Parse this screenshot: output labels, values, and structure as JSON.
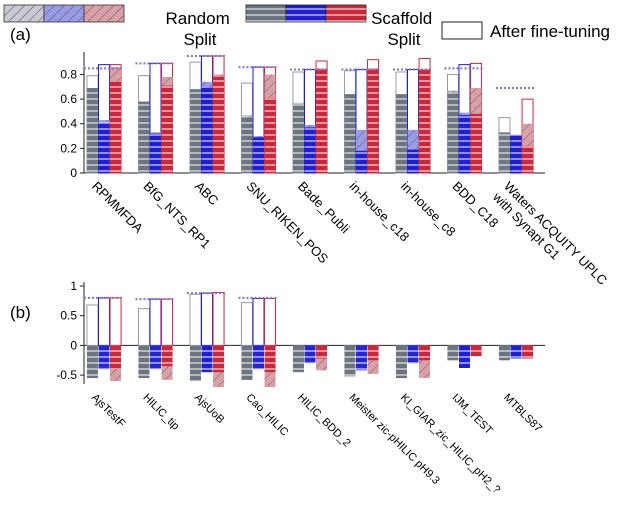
{
  "legend": {
    "random_split": "Random\nSplit",
    "scaffold_split": "Scaffold\nSplit",
    "after_finetuning": "After fine-tuning"
  },
  "colors": {
    "random_gray": "#c9c9d2",
    "random_blue": "#9a9ae6",
    "random_red": "#d9a0a8",
    "scaffold_gray": "#6c757f",
    "scaffold_blue": "#1f1fd0",
    "scaffold_red": "#c8283c",
    "dotted_line": "#8a6fc0"
  },
  "chart_data": [
    {
      "panel_label": "(a)",
      "type": "bar",
      "ylim": [
        0,
        0.95
      ],
      "yticks": [
        0,
        0.2,
        0.4,
        0.6,
        0.8
      ],
      "categories": [
        "RPMMFDA",
        "BfG_NTS_RP1",
        "ABC",
        "SNU_RIKEN_POS",
        "Bade_Publi",
        "in-house_c18",
        "in-house_c8",
        "BDD_C18",
        "Waters ACQUITY UPLC\nwith Synapt G1"
      ],
      "series": [
        {
          "group": "gray",
          "random": [
            0.69,
            0.58,
            0.68,
            0.47,
            0.57,
            0.64,
            0.64,
            0.67,
            0.31
          ],
          "scaffold": [
            0.69,
            0.58,
            0.68,
            0.45,
            0.56,
            0.64,
            0.64,
            0.66,
            0.33
          ],
          "after": [
            0.79,
            0.79,
            0.9,
            0.73,
            0.82,
            0.83,
            0.82,
            0.8,
            0.45
          ]
        },
        {
          "group": "blue",
          "random": [
            0.43,
            0.33,
            0.74,
            0.3,
            0.39,
            0.35,
            0.35,
            0.49,
            0.31
          ],
          "scaffold": [
            0.41,
            0.32,
            0.69,
            0.29,
            0.37,
            0.18,
            0.19,
            0.47,
            0.31
          ],
          "after": [
            0.88,
            0.89,
            0.95,
            0.86,
            0.84,
            0.84,
            0.84,
            0.88,
            0.3
          ]
        },
        {
          "group": "red",
          "random": [
            0.86,
            0.78,
            0.8,
            0.8,
            0.85,
            0.85,
            0.84,
            0.69,
            0.4
          ],
          "scaffold": [
            0.74,
            0.71,
            0.78,
            0.61,
            0.84,
            0.84,
            0.84,
            0.48,
            0.22
          ],
          "after": [
            0.88,
            0.89,
            0.95,
            0.86,
            0.91,
            0.92,
            0.93,
            0.89,
            0.6
          ]
        }
      ],
      "dotted_reference": [
        0.85,
        0.89,
        0.95,
        0.86,
        0.84,
        0.84,
        0.84,
        0.85,
        0.69
      ]
    },
    {
      "panel_label": "(b)",
      "type": "bar",
      "ylim": [
        -0.65,
        1.0
      ],
      "yticks": [
        -0.5,
        0,
        0.5,
        1
      ],
      "ytick_labels": [
        "-0.5",
        "0",
        "0.5",
        "1"
      ],
      "categories": [
        "AjsTestF",
        "HILIC_tip",
        "AjsUoB",
        "Cao_HILIC",
        "HILIC_BDD_2",
        "Meister zic-pHILIC pH9.3",
        "KI_GIAR_zic_HILIC_pH2_?",
        "IJM_TEST",
        "MTBLS87"
      ],
      "series": [
        {
          "group": "gray",
          "random": [
            -0.55,
            -0.55,
            -0.6,
            -0.58,
            -0.45,
            -0.52,
            -0.55,
            -0.25,
            -0.25
          ],
          "scaffold": [
            -0.55,
            -0.55,
            -0.6,
            -0.58,
            -0.45,
            -0.52,
            -0.55,
            -0.25,
            -0.25
          ],
          "after": [
            0.68,
            0.62,
            0.86,
            0.72,
            null,
            null,
            null,
            null,
            null
          ]
        },
        {
          "group": "blue",
          "random": [
            -0.35,
            -0.38,
            -0.45,
            -0.38,
            -0.25,
            -0.4,
            -0.28,
            -0.38,
            -0.22
          ],
          "scaffold": [
            -0.4,
            -0.4,
            -0.45,
            -0.4,
            -0.3,
            -0.42,
            -0.3,
            -0.38,
            -0.22
          ],
          "after": [
            0.8,
            0.78,
            0.88,
            0.79,
            null,
            null,
            null,
            null,
            null
          ]
        },
        {
          "group": "red",
          "random": [
            -0.6,
            -0.58,
            -0.7,
            -0.7,
            -0.42,
            -0.48,
            -0.55,
            -0.18,
            -0.22
          ],
          "scaffold": [
            -0.4,
            -0.35,
            -0.45,
            -0.45,
            -0.22,
            -0.25,
            -0.25,
            -0.18,
            -0.22
          ],
          "after": [
            0.8,
            0.78,
            0.89,
            0.79,
            null,
            null,
            null,
            null,
            null
          ]
        }
      ],
      "dotted_reference": [
        0.8,
        0.78,
        0.88,
        0.8,
        null,
        null,
        null,
        null,
        null
      ]
    }
  ]
}
